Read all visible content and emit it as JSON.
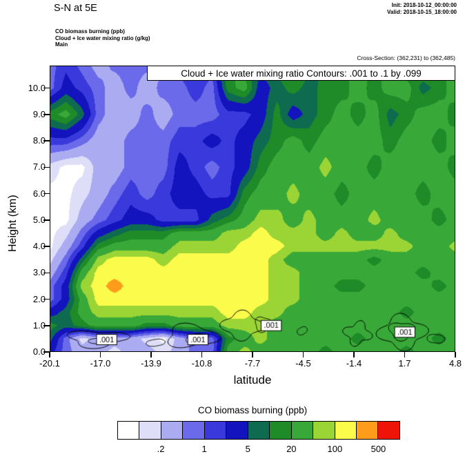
{
  "header": {
    "title": "S-N at 5E",
    "init": "Init: 2018-10-12_00:00:00",
    "valid": "Valid: 2018-10-15_18:00:00",
    "legend_lines": [
      "CO biomass burning   (ppb)",
      "Cloud + Ice water mixing ratio   (g/kg)",
      "Main"
    ],
    "cross_section": "Cross-Section: (362,231) to (362,485)"
  },
  "chart_data": {
    "type": "heatmap",
    "subtype": "filled-contour-vertical-cross-section",
    "title_box": "Cloud + Ice water mixing ratio Contours: .001 to .1 by .099",
    "xlabel": "latitude",
    "ylabel": "Height (km)",
    "xlim": [
      -20.1,
      4.8
    ],
    "ylim": [
      0,
      10.85
    ],
    "x_ticks": [
      "-20.1",
      "-17.0",
      "-13.9",
      "-10.8",
      "-7.7",
      "-4.5",
      "-1.4",
      "1.7",
      "4.8"
    ],
    "y_ticks": [
      "0.0",
      "1.0",
      "2.0",
      "3.0",
      "4.0",
      "5.0",
      "6.0",
      "7.0",
      "8.0",
      "9.0",
      "10.0"
    ],
    "levels_ppb": [
      0.1,
      0.2,
      0.5,
      1,
      2,
      5,
      10,
      20,
      50,
      100,
      200,
      500
    ],
    "colors": [
      "#FFFFFF",
      "#DEDEF8",
      "#ABABF2",
      "#6A6AEA",
      "#3A3ADC",
      "#1414BE",
      "#0E6B50",
      "#1E8A28",
      "#38A838",
      "#9BD435",
      "#FBFB4B",
      "#FF9C1C",
      "#EE1407"
    ],
    "colorbar": {
      "title": "CO biomass burning  (ppb)",
      "labels": [
        ".2",
        "1",
        "5",
        "20",
        "100",
        "500"
      ]
    },
    "grid": {
      "lat_min": -20.1,
      "lat_max": 4.8,
      "n_lat": 26,
      "heights": [
        0,
        0.5,
        1,
        1.5,
        2,
        2.5,
        3,
        3.5,
        4,
        4.5,
        5,
        6,
        7,
        8,
        9,
        10,
        11
      ],
      "values_ppb": [
        [
          3,
          0.7,
          0.3,
          0.3,
          0.15,
          0.3,
          0.3,
          0.15,
          0.3,
          0.7,
          0.7,
          30,
          70,
          30,
          30,
          30,
          30,
          14,
          30,
          30,
          30,
          30,
          14,
          30,
          30,
          30
        ],
        [
          7,
          0.7,
          0.15,
          0.3,
          0.3,
          0.3,
          0.15,
          0.08,
          0.3,
          0.7,
          0.7,
          14,
          30,
          70,
          30,
          30,
          30,
          30,
          30,
          14,
          30,
          30,
          30,
          30,
          14,
          30
        ],
        [
          14,
          7,
          14,
          30,
          30,
          30,
          14,
          14,
          30,
          30,
          30,
          70,
          70,
          70,
          30,
          30,
          30,
          30,
          30,
          30,
          30,
          30,
          30,
          30,
          30,
          30
        ],
        [
          3,
          7,
          30,
          70,
          70,
          70,
          70,
          70,
          70,
          70,
          70,
          140,
          140,
          70,
          70,
          30,
          30,
          30,
          30,
          30,
          30,
          30,
          14,
          30,
          30,
          30
        ],
        [
          0.7,
          3,
          30,
          140,
          140,
          140,
          140,
          140,
          140,
          140,
          140,
          140,
          140,
          140,
          70,
          70,
          30,
          30,
          30,
          30,
          30,
          30,
          30,
          30,
          30,
          30
        ],
        [
          0.7,
          3,
          70,
          140,
          300,
          140,
          140,
          140,
          140,
          140,
          140,
          140,
          140,
          140,
          70,
          70,
          30,
          30,
          14,
          14,
          30,
          30,
          30,
          30,
          14,
          30
        ],
        [
          0.3,
          1.5,
          30,
          140,
          140,
          140,
          140,
          140,
          140,
          140,
          140,
          140,
          140,
          140,
          70,
          70,
          30,
          30,
          30,
          30,
          30,
          30,
          30,
          14,
          30,
          30
        ],
        [
          0.15,
          0.7,
          7,
          70,
          140,
          140,
          140,
          70,
          140,
          140,
          140,
          140,
          140,
          140,
          70,
          30,
          30,
          30,
          30,
          30,
          14,
          30,
          30,
          30,
          30,
          30
        ],
        [
          0.08,
          0.3,
          1.5,
          14,
          30,
          30,
          30,
          30,
          70,
          70,
          70,
          70,
          140,
          140,
          140,
          70,
          70,
          70,
          70,
          70,
          70,
          70,
          70,
          30,
          30,
          70
        ],
        [
          0.08,
          0.15,
          0.7,
          3,
          7,
          14,
          14,
          14,
          30,
          30,
          30,
          70,
          70,
          140,
          70,
          70,
          70,
          30,
          70,
          30,
          30,
          70,
          30,
          30,
          30,
          30
        ],
        [
          0.08,
          0.08,
          0.3,
          0.7,
          1.5,
          3,
          3,
          1.5,
          1.5,
          1.5,
          7,
          14,
          30,
          70,
          70,
          30,
          70,
          30,
          30,
          30,
          70,
          30,
          30,
          30,
          14,
          30
        ],
        [
          0.08,
          0.08,
          0.15,
          0.3,
          0.7,
          1.5,
          0.7,
          1.5,
          3,
          3,
          1.5,
          1.5,
          14,
          30,
          30,
          70,
          30,
          30,
          14,
          30,
          30,
          30,
          30,
          14,
          30,
          30
        ],
        [
          0.15,
          0.08,
          0.08,
          0.3,
          0.3,
          0.7,
          0.7,
          0.7,
          3,
          1.5,
          0.7,
          1.5,
          3,
          14,
          30,
          30,
          30,
          70,
          30,
          30,
          14,
          30,
          30,
          30,
          30,
          14
        ],
        [
          1.5,
          1.5,
          0.7,
          0.3,
          0.3,
          0.7,
          0.7,
          0.7,
          1.5,
          1.5,
          3,
          1.5,
          3,
          7,
          14,
          30,
          14,
          30,
          30,
          30,
          30,
          14,
          30,
          30,
          14,
          30
        ],
        [
          14,
          30,
          7,
          0.7,
          0.3,
          0.3,
          0.7,
          0.3,
          0.7,
          0.7,
          0.7,
          1.5,
          1.5,
          3,
          14,
          3,
          7,
          14,
          30,
          14,
          30,
          7,
          14,
          30,
          30,
          14
        ],
        [
          0.7,
          3,
          1.5,
          0.7,
          0.3,
          0.7,
          0.3,
          0.7,
          0.7,
          1.5,
          0.7,
          14,
          30,
          3,
          7,
          14,
          7,
          14,
          14,
          30,
          14,
          30,
          30,
          7,
          14,
          30
        ],
        [
          0.7,
          1.5,
          0.7,
          0.3,
          0.7,
          0.7,
          0.7,
          0.3,
          1.5,
          3,
          1.5,
          30,
          14,
          7,
          14,
          30,
          14,
          7,
          30,
          14,
          30,
          14,
          7,
          30,
          30,
          14
        ]
      ]
    },
    "contour_overlay": {
      "level_text": ".001",
      "labels": [
        [
          -16.6,
          0.47
        ],
        [
          -11.0,
          0.47
        ],
        [
          -6.5,
          1.0
        ],
        [
          1.7,
          0.75
        ]
      ],
      "loops": [
        [
          -17.2,
          0.5,
          1.7,
          0.3,
          3,
          0.25,
          0.5
        ],
        [
          -16.9,
          0.42,
          0.7,
          0.13,
          2,
          0.2,
          1.2
        ],
        [
          -11.4,
          0.6,
          1.5,
          0.42,
          3,
          0.22,
          2.1
        ],
        [
          -11.1,
          0.5,
          0.6,
          0.2,
          2,
          0.15,
          0.3
        ],
        [
          -8.3,
          1.0,
          1.15,
          0.5,
          4,
          0.18,
          1.7
        ],
        [
          -7.0,
          1.05,
          0.5,
          0.28,
          3,
          0.15,
          0.9
        ],
        [
          -4.6,
          0.8,
          0.28,
          0.16,
          2,
          0.2,
          0.4
        ],
        [
          -1.2,
          0.7,
          0.75,
          0.4,
          4,
          0.25,
          2.6
        ],
        [
          1.55,
          0.75,
          1.35,
          0.6,
          4,
          0.2,
          1.1
        ],
        [
          1.5,
          0.8,
          0.75,
          0.33,
          3,
          0.18,
          0.2
        ],
        [
          3.6,
          0.5,
          0.45,
          0.2,
          2,
          0.2,
          1.9
        ],
        [
          -13.6,
          0.35,
          0.5,
          0.15,
          2,
          0.2,
          0.8
        ]
      ]
    }
  }
}
